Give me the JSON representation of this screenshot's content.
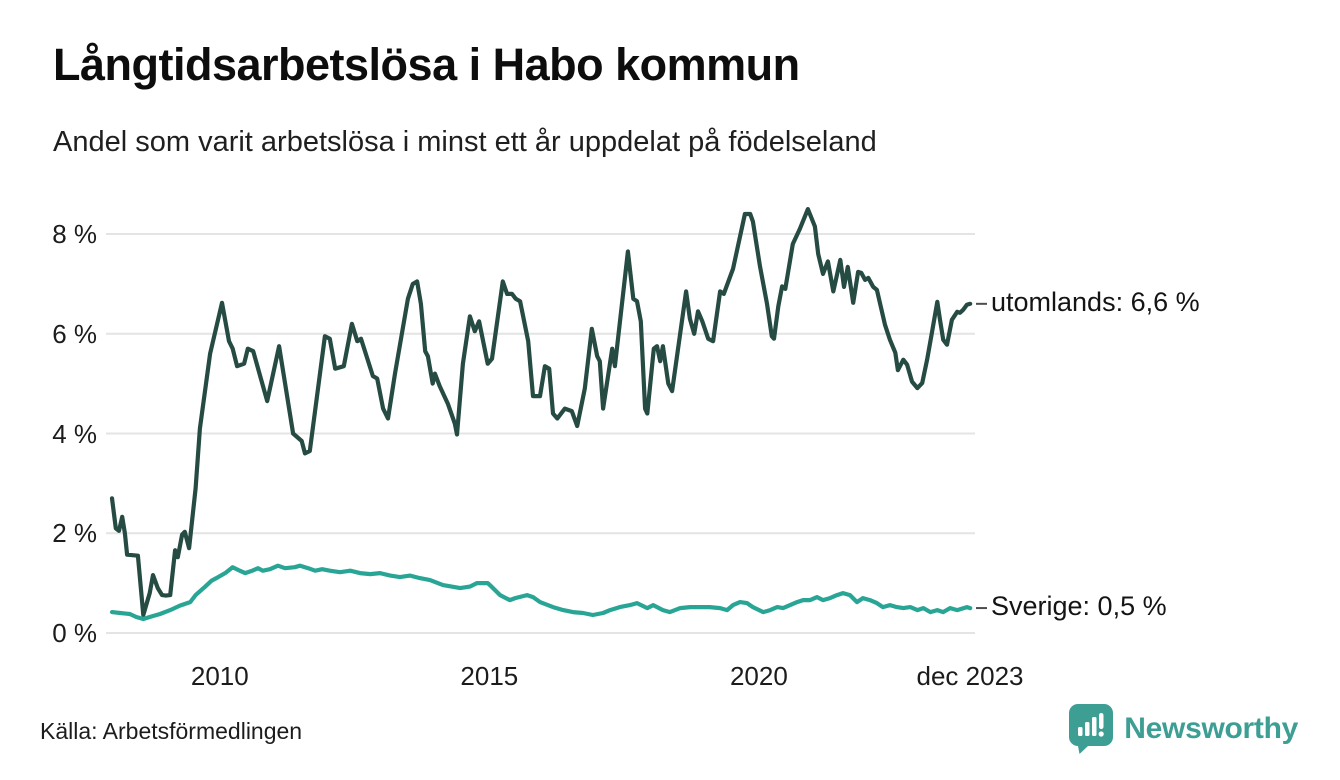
{
  "header": {
    "title": "Långtidsarbetslösa i Habo kommun",
    "subtitle": "Andel som varit arbetslösa i minst ett år uppdelat på födelseland"
  },
  "footer": {
    "source": "Källa: Arbetsförmedlingen",
    "brand": "Newsworthy"
  },
  "colors": {
    "utomlands_line": "#264b43",
    "sverige_line": "#29a596",
    "gridline": "#e4e4e4",
    "end_tick": "#4d4d4d",
    "brand_teal": "#3d9e94",
    "text": "#1a1a1a"
  },
  "chart_data": {
    "type": "line",
    "title": "Långtidsarbetslösa i Habo kommun",
    "subtitle": "Andel som varit arbetslösa i minst ett år uppdelat på födelseland",
    "unit": "%",
    "grid": true,
    "legend_position": "right-end-labels",
    "x_range": [
      2008.0,
      2023.917
    ],
    "y_range": [
      0,
      8.6
    ],
    "y_axis": {
      "ticks": [
        {
          "v": 8,
          "label": "8 %"
        },
        {
          "v": 6,
          "label": "6 %"
        },
        {
          "v": 4,
          "label": "4 %"
        },
        {
          "v": 2,
          "label": "2 %"
        },
        {
          "v": 0,
          "label": "0 %"
        }
      ]
    },
    "x_axis": {
      "ticks": [
        {
          "t": 2010,
          "label": "2010"
        },
        {
          "t": 2015,
          "label": "2015"
        },
        {
          "t": 2020,
          "label": "2020"
        },
        {
          "t": 2023.917,
          "label": "dec 2023"
        }
      ]
    },
    "series": [
      {
        "name": "utomlands",
        "end_label": "utomlands: 6,6 %",
        "end_value": 6.6,
        "color": "#264b43",
        "points": [
          [
            2008.0,
            2.7
          ],
          [
            2008.07,
            2.1
          ],
          [
            2008.13,
            2.05
          ],
          [
            2008.19,
            2.33
          ],
          [
            2008.24,
            2.0
          ],
          [
            2008.28,
            1.57
          ],
          [
            2008.48,
            1.55
          ],
          [
            2008.58,
            0.36
          ],
          [
            2008.7,
            0.8
          ],
          [
            2008.76,
            1.16
          ],
          [
            2008.85,
            0.9
          ],
          [
            2008.93,
            0.76
          ],
          [
            2009.0,
            0.75
          ],
          [
            2009.08,
            0.76
          ],
          [
            2009.17,
            1.66
          ],
          [
            2009.22,
            1.52
          ],
          [
            2009.3,
            1.97
          ],
          [
            2009.35,
            2.03
          ],
          [
            2009.43,
            1.7
          ],
          [
            2009.55,
            2.9
          ],
          [
            2009.63,
            4.1
          ],
          [
            2009.82,
            5.6
          ],
          [
            2010.04,
            6.62
          ],
          [
            2010.17,
            5.85
          ],
          [
            2010.24,
            5.7
          ],
          [
            2010.32,
            5.35
          ],
          [
            2010.45,
            5.4
          ],
          [
            2010.52,
            5.7
          ],
          [
            2010.62,
            5.65
          ],
          [
            2010.88,
            4.65
          ],
          [
            2011.1,
            5.75
          ],
          [
            2011.36,
            4.0
          ],
          [
            2011.52,
            3.85
          ],
          [
            2011.58,
            3.6
          ],
          [
            2011.67,
            3.65
          ],
          [
            2011.95,
            5.95
          ],
          [
            2012.04,
            5.9
          ],
          [
            2012.14,
            5.3
          ],
          [
            2012.3,
            5.35
          ],
          [
            2012.45,
            6.2
          ],
          [
            2012.55,
            5.85
          ],
          [
            2012.62,
            5.9
          ],
          [
            2012.84,
            5.15
          ],
          [
            2012.92,
            5.1
          ],
          [
            2013.03,
            4.5
          ],
          [
            2013.12,
            4.3
          ],
          [
            2013.25,
            5.2
          ],
          [
            2013.49,
            6.7
          ],
          [
            2013.58,
            7.0
          ],
          [
            2013.66,
            7.05
          ],
          [
            2013.73,
            6.6
          ],
          [
            2013.81,
            5.65
          ],
          [
            2013.86,
            5.55
          ],
          [
            2013.95,
            5.0
          ],
          [
            2013.99,
            5.2
          ],
          [
            2014.08,
            4.95
          ],
          [
            2014.23,
            4.6
          ],
          [
            2014.36,
            4.2
          ],
          [
            2014.4,
            3.98
          ],
          [
            2014.51,
            5.4
          ],
          [
            2014.64,
            6.35
          ],
          [
            2014.73,
            6.05
          ],
          [
            2014.81,
            6.25
          ],
          [
            2014.97,
            5.4
          ],
          [
            2015.05,
            5.5
          ],
          [
            2015.25,
            7.05
          ],
          [
            2015.33,
            6.8
          ],
          [
            2015.42,
            6.8
          ],
          [
            2015.49,
            6.7
          ],
          [
            2015.57,
            6.65
          ],
          [
            2015.72,
            5.85
          ],
          [
            2015.81,
            4.75
          ],
          [
            2015.94,
            4.75
          ],
          [
            2016.03,
            5.35
          ],
          [
            2016.11,
            5.3
          ],
          [
            2016.18,
            4.4
          ],
          [
            2016.26,
            4.3
          ],
          [
            2016.4,
            4.5
          ],
          [
            2016.53,
            4.45
          ],
          [
            2016.63,
            4.15
          ],
          [
            2016.77,
            4.9
          ],
          [
            2016.9,
            6.1
          ],
          [
            2017.0,
            5.55
          ],
          [
            2017.05,
            5.45
          ],
          [
            2017.11,
            4.5
          ],
          [
            2017.28,
            5.7
          ],
          [
            2017.33,
            5.35
          ],
          [
            2017.57,
            7.65
          ],
          [
            2017.67,
            6.7
          ],
          [
            2017.74,
            6.65
          ],
          [
            2017.81,
            6.25
          ],
          [
            2017.89,
            4.5
          ],
          [
            2017.93,
            4.4
          ],
          [
            2018.05,
            5.7
          ],
          [
            2018.11,
            5.75
          ],
          [
            2018.17,
            5.45
          ],
          [
            2018.22,
            5.75
          ],
          [
            2018.32,
            5.0
          ],
          [
            2018.39,
            4.85
          ],
          [
            2018.65,
            6.85
          ],
          [
            2018.72,
            6.3
          ],
          [
            2018.8,
            6.0
          ],
          [
            2018.87,
            6.45
          ],
          [
            2018.95,
            6.25
          ],
          [
            2019.06,
            5.9
          ],
          [
            2019.15,
            5.85
          ],
          [
            2019.28,
            6.85
          ],
          [
            2019.35,
            6.8
          ],
          [
            2019.52,
            7.3
          ],
          [
            2019.74,
            8.4
          ],
          [
            2019.84,
            8.4
          ],
          [
            2019.89,
            8.25
          ],
          [
            2020.02,
            7.35
          ],
          [
            2020.15,
            6.6
          ],
          [
            2020.24,
            5.95
          ],
          [
            2020.28,
            5.9
          ],
          [
            2020.36,
            6.55
          ],
          [
            2020.43,
            6.95
          ],
          [
            2020.49,
            6.9
          ],
          [
            2020.63,
            7.8
          ],
          [
            2020.76,
            8.1
          ],
          [
            2020.91,
            8.5
          ],
          [
            2021.04,
            8.15
          ],
          [
            2021.1,
            7.6
          ],
          [
            2021.19,
            7.2
          ],
          [
            2021.28,
            7.45
          ],
          [
            2021.38,
            6.85
          ],
          [
            2021.51,
            7.48
          ],
          [
            2021.58,
            6.94
          ],
          [
            2021.65,
            7.34
          ],
          [
            2021.75,
            6.62
          ],
          [
            2021.84,
            7.24
          ],
          [
            2021.9,
            7.22
          ],
          [
            2021.97,
            7.08
          ],
          [
            2022.03,
            7.12
          ],
          [
            2022.12,
            6.94
          ],
          [
            2022.19,
            6.88
          ],
          [
            2022.34,
            6.18
          ],
          [
            2022.43,
            5.88
          ],
          [
            2022.53,
            5.62
          ],
          [
            2022.58,
            5.27
          ],
          [
            2022.68,
            5.48
          ],
          [
            2022.75,
            5.38
          ],
          [
            2022.84,
            5.04
          ],
          [
            2022.94,
            4.91
          ],
          [
            2023.03,
            5.01
          ],
          [
            2023.12,
            5.48
          ],
          [
            2023.21,
            6.02
          ],
          [
            2023.31,
            6.64
          ],
          [
            2023.36,
            6.28
          ],
          [
            2023.42,
            5.88
          ],
          [
            2023.49,
            5.78
          ],
          [
            2023.58,
            6.28
          ],
          [
            2023.68,
            6.44
          ],
          [
            2023.73,
            6.42
          ],
          [
            2023.79,
            6.48
          ],
          [
            2023.86,
            6.58
          ],
          [
            2023.92,
            6.6
          ]
        ]
      },
      {
        "name": "Sverige",
        "end_label": "Sverige: 0,5 %",
        "end_value": 0.5,
        "color": "#29a596",
        "points": [
          [
            2008.0,
            0.42
          ],
          [
            2008.15,
            0.4
          ],
          [
            2008.33,
            0.38
          ],
          [
            2008.45,
            0.32
          ],
          [
            2008.58,
            0.28
          ],
          [
            2008.7,
            0.32
          ],
          [
            2008.89,
            0.38
          ],
          [
            2009.08,
            0.46
          ],
          [
            2009.26,
            0.55
          ],
          [
            2009.45,
            0.62
          ],
          [
            2009.55,
            0.76
          ],
          [
            2009.72,
            0.92
          ],
          [
            2009.85,
            1.05
          ],
          [
            2009.97,
            1.12
          ],
          [
            2010.1,
            1.2
          ],
          [
            2010.24,
            1.32
          ],
          [
            2010.37,
            1.25
          ],
          [
            2010.47,
            1.2
          ],
          [
            2010.6,
            1.25
          ],
          [
            2010.71,
            1.3
          ],
          [
            2010.8,
            1.25
          ],
          [
            2010.93,
            1.28
          ],
          [
            2011.08,
            1.35
          ],
          [
            2011.21,
            1.3
          ],
          [
            2011.39,
            1.32
          ],
          [
            2011.49,
            1.35
          ],
          [
            2011.64,
            1.3
          ],
          [
            2011.77,
            1.25
          ],
          [
            2011.9,
            1.28
          ],
          [
            2012.04,
            1.25
          ],
          [
            2012.23,
            1.22
          ],
          [
            2012.42,
            1.25
          ],
          [
            2012.6,
            1.2
          ],
          [
            2012.79,
            1.18
          ],
          [
            2012.97,
            1.2
          ],
          [
            2013.16,
            1.15
          ],
          [
            2013.34,
            1.12
          ],
          [
            2013.53,
            1.15
          ],
          [
            2013.71,
            1.1
          ],
          [
            2013.9,
            1.06
          ],
          [
            2014.14,
            0.96
          ],
          [
            2014.46,
            0.9
          ],
          [
            2014.64,
            0.93
          ],
          [
            2014.77,
            1.0
          ],
          [
            2014.97,
            1.0
          ],
          [
            2015.05,
            0.92
          ],
          [
            2015.2,
            0.76
          ],
          [
            2015.38,
            0.66
          ],
          [
            2015.48,
            0.7
          ],
          [
            2015.7,
            0.76
          ],
          [
            2015.81,
            0.72
          ],
          [
            2015.94,
            0.62
          ],
          [
            2016.18,
            0.52
          ],
          [
            2016.37,
            0.46
          ],
          [
            2016.55,
            0.42
          ],
          [
            2016.74,
            0.4
          ],
          [
            2016.92,
            0.36
          ],
          [
            2017.11,
            0.4
          ],
          [
            2017.24,
            0.46
          ],
          [
            2017.42,
            0.52
          ],
          [
            2017.61,
            0.56
          ],
          [
            2017.74,
            0.6
          ],
          [
            2017.93,
            0.5
          ],
          [
            2018.04,
            0.56
          ],
          [
            2018.22,
            0.46
          ],
          [
            2018.35,
            0.42
          ],
          [
            2018.54,
            0.5
          ],
          [
            2018.72,
            0.52
          ],
          [
            2018.91,
            0.52
          ],
          [
            2019.09,
            0.52
          ],
          [
            2019.28,
            0.5
          ],
          [
            2019.41,
            0.46
          ],
          [
            2019.52,
            0.56
          ],
          [
            2019.65,
            0.62
          ],
          [
            2019.78,
            0.6
          ],
          [
            2019.89,
            0.52
          ],
          [
            2020.08,
            0.42
          ],
          [
            2020.21,
            0.46
          ],
          [
            2020.34,
            0.52
          ],
          [
            2020.45,
            0.5
          ],
          [
            2020.58,
            0.56
          ],
          [
            2020.71,
            0.62
          ],
          [
            2020.82,
            0.66
          ],
          [
            2020.95,
            0.66
          ],
          [
            2021.08,
            0.72
          ],
          [
            2021.19,
            0.66
          ],
          [
            2021.32,
            0.7
          ],
          [
            2021.45,
            0.76
          ],
          [
            2021.56,
            0.8
          ],
          [
            2021.69,
            0.76
          ],
          [
            2021.82,
            0.62
          ],
          [
            2021.93,
            0.7
          ],
          [
            2022.06,
            0.66
          ],
          [
            2022.19,
            0.6
          ],
          [
            2022.3,
            0.52
          ],
          [
            2022.43,
            0.56
          ],
          [
            2022.56,
            0.52
          ],
          [
            2022.68,
            0.5
          ],
          [
            2022.81,
            0.52
          ],
          [
            2022.94,
            0.46
          ],
          [
            2023.05,
            0.5
          ],
          [
            2023.18,
            0.42
          ],
          [
            2023.31,
            0.46
          ],
          [
            2023.42,
            0.42
          ],
          [
            2023.55,
            0.5
          ],
          [
            2023.68,
            0.46
          ],
          [
            2023.86,
            0.52
          ],
          [
            2023.92,
            0.5
          ]
        ]
      }
    ]
  }
}
